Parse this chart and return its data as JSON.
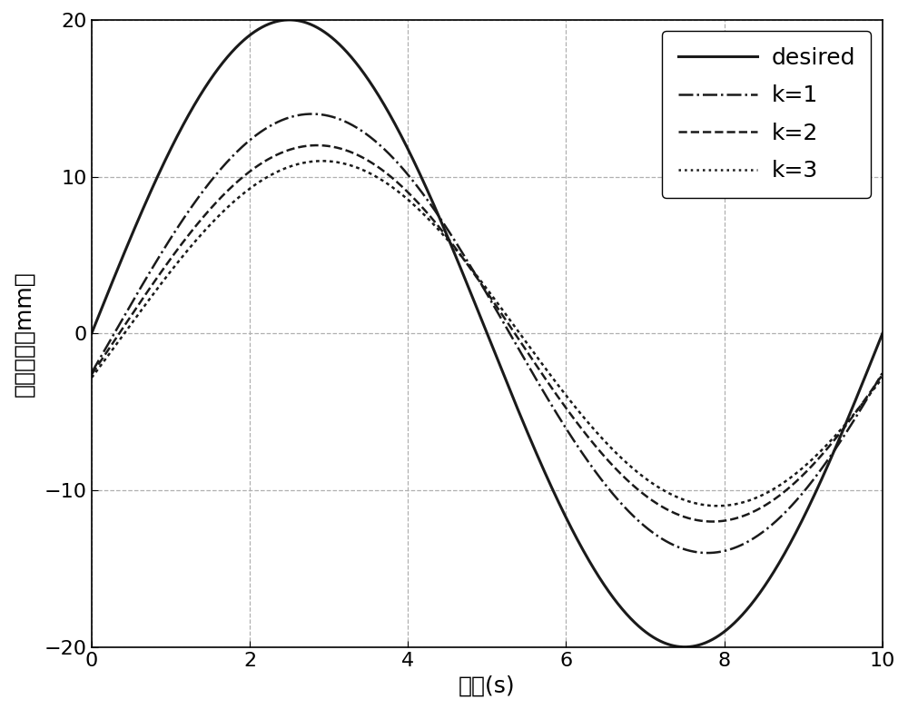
{
  "title": "",
  "xlabel": "时间(s)",
  "ylabel": "系统输出（mm）",
  "xlim": [
    0,
    10
  ],
  "ylim": [
    -20,
    20
  ],
  "xticks": [
    0,
    2,
    4,
    6,
    8,
    10
  ],
  "yticks": [
    -20,
    -10,
    0,
    10,
    20
  ],
  "grid_color": "#b0b0b0",
  "line_color": "#1a1a1a",
  "background_color": "#ffffff",
  "desired_amplitude": 20,
  "k1_amplitude": 14.0,
  "k2_amplitude": 12.0,
  "k3_amplitude": 11.0,
  "k1_phase": 0.18,
  "k2_phase": 0.22,
  "k3_phase": 0.26,
  "period": 10,
  "legend_labels": [
    "desired",
    "k=1",
    "k=2",
    "k=3"
  ],
  "legend_linestyles": [
    "-",
    "-.",
    "--",
    ":"
  ],
  "legend_linewidths": [
    2.2,
    1.8,
    1.8,
    1.8
  ],
  "xlabel_fontsize": 18,
  "ylabel_fontsize": 18,
  "tick_fontsize": 16,
  "legend_fontsize": 18
}
